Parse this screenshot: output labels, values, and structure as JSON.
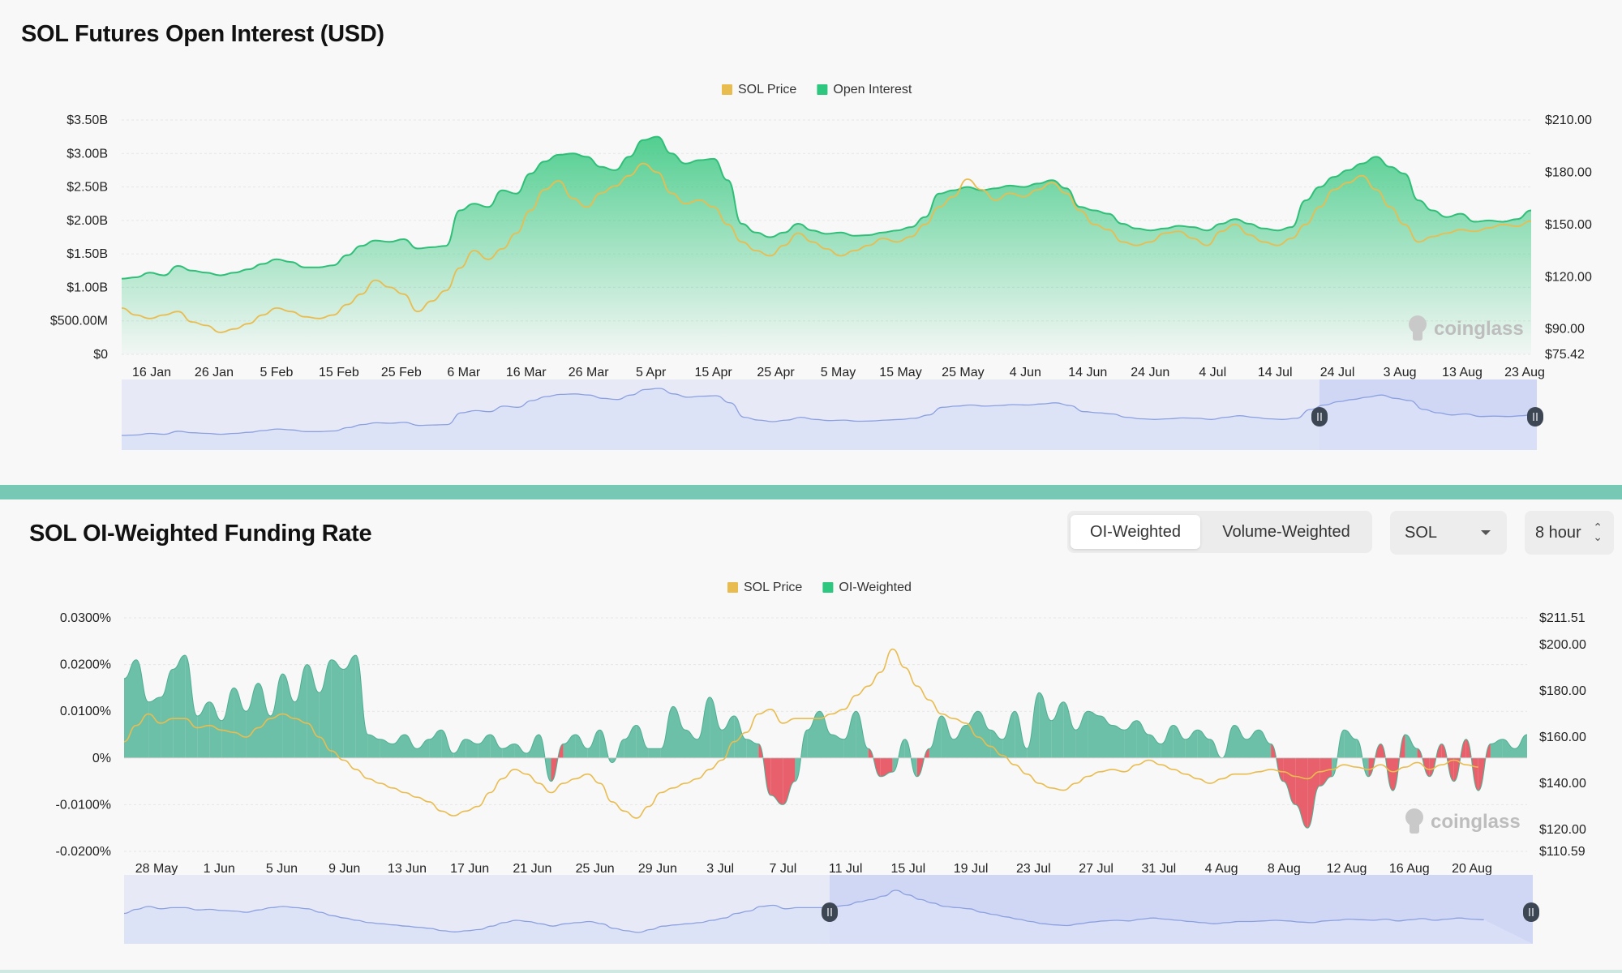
{
  "oi_section": {
    "title": "SOL Futures Open Interest (USD)",
    "legend": [
      {
        "label": "SOL Price",
        "color": "#e9bc4f"
      },
      {
        "label": "Open Interest",
        "color": "#2ec77f"
      }
    ],
    "watermark": "coinglass",
    "chart_data": {
      "type": "area",
      "title": "SOL Futures Open Interest (USD)",
      "x_tick_labels": [
        "16 Jan",
        "26 Jan",
        "5 Feb",
        "15 Feb",
        "25 Feb",
        "6 Mar",
        "16 Mar",
        "26 Mar",
        "5 Apr",
        "15 Apr",
        "25 Apr",
        "5 May",
        "15 May",
        "25 May",
        "4 Jun",
        "14 Jun",
        "24 Jun",
        "4 Jul",
        "14 Jul",
        "24 Jul",
        "3 Aug",
        "13 Aug",
        "23 Aug"
      ],
      "y_left_ticks": [
        "$0",
        "$500.00M",
        "$1.00B",
        "$1.50B",
        "$2.00B",
        "$2.50B",
        "$3.00B",
        "$3.50B"
      ],
      "y_right_ticks": [
        "$75.42",
        "$90.00",
        "$120.00",
        "$150.00",
        "$180.00",
        "$210.00"
      ],
      "y_left_range": [
        0,
        3.5
      ],
      "y_right_range": [
        75.42,
        210
      ],
      "series": [
        {
          "name": "Open Interest",
          "axis": "left",
          "unit": "B USD",
          "values": [
            1.13,
            1.15,
            1.22,
            1.18,
            1.32,
            1.25,
            1.22,
            1.18,
            1.22,
            1.27,
            1.35,
            1.42,
            1.38,
            1.3,
            1.3,
            1.33,
            1.48,
            1.62,
            1.7,
            1.68,
            1.72,
            1.58,
            1.6,
            1.62,
            2.15,
            2.25,
            2.2,
            2.45,
            2.4,
            2.7,
            2.88,
            2.98,
            3.0,
            2.95,
            2.8,
            2.75,
            2.95,
            3.2,
            3.25,
            3.0,
            2.85,
            2.9,
            2.92,
            2.6,
            1.95,
            1.82,
            1.75,
            1.82,
            1.95,
            1.85,
            1.8,
            1.82,
            1.77,
            1.78,
            1.82,
            1.85,
            1.9,
            2.05,
            2.4,
            2.45,
            2.5,
            2.45,
            2.48,
            2.52,
            2.5,
            2.55,
            2.6,
            2.48,
            2.2,
            2.15,
            2.1,
            1.95,
            1.88,
            1.85,
            1.88,
            1.92,
            1.9,
            1.85,
            1.95,
            2.02,
            1.95,
            1.88,
            1.85,
            1.9,
            2.3,
            2.5,
            2.65,
            2.75,
            2.85,
            2.95,
            2.8,
            2.7,
            2.3,
            2.15,
            2.05,
            2.1,
            1.98,
            2.0,
            1.98,
            2.02,
            2.15
          ]
        },
        {
          "name": "SOL Price",
          "axis": "right",
          "unit": "USD",
          "values": [
            102,
            98,
            96,
            98,
            100,
            94,
            92,
            88,
            90,
            93,
            98,
            102,
            100,
            97,
            96,
            98,
            104,
            110,
            118,
            114,
            110,
            100,
            106,
            112,
            125,
            135,
            130,
            136,
            145,
            158,
            170,
            175,
            165,
            160,
            168,
            172,
            178,
            185,
            180,
            168,
            162,
            164,
            160,
            150,
            140,
            135,
            132,
            138,
            145,
            140,
            136,
            132,
            135,
            138,
            142,
            140,
            143,
            150,
            160,
            166,
            176,
            170,
            164,
            168,
            166,
            170,
            174,
            168,
            158,
            150,
            147,
            140,
            138,
            140,
            145,
            146,
            142,
            138,
            146,
            150,
            144,
            140,
            138,
            142,
            150,
            160,
            170,
            174,
            178,
            170,
            160,
            150,
            140,
            143,
            145,
            147,
            146,
            148,
            150,
            149,
            152
          ]
        }
      ]
    },
    "navigator": {
      "has_range_selector": true
    }
  },
  "funding_section": {
    "title": "SOL OI-Weighted Funding Rate",
    "tabs": [
      {
        "label": "OI-Weighted",
        "active": true
      },
      {
        "label": "Volume-Weighted",
        "active": false
      }
    ],
    "symbol_select": {
      "value": "SOL"
    },
    "interval_select": {
      "value": "8 hour"
    },
    "legend": [
      {
        "label": "SOL Price",
        "color": "#e9bc4f"
      },
      {
        "label": "OI-Weighted",
        "color": "#2ec77f"
      }
    ],
    "watermark": "coinglass",
    "chart_data": {
      "type": "area",
      "title": "SOL OI-Weighted Funding Rate",
      "x_tick_labels": [
        "28 May",
        "1 Jun",
        "5 Jun",
        "9 Jun",
        "13 Jun",
        "17 Jun",
        "21 Jun",
        "25 Jun",
        "29 Jun",
        "3 Jul",
        "7 Jul",
        "11 Jul",
        "15 Jul",
        "19 Jul",
        "23 Jul",
        "27 Jul",
        "31 Jul",
        "4 Aug",
        "8 Aug",
        "12 Aug",
        "16 Aug",
        "20 Aug"
      ],
      "y_left_ticks": [
        "-0.0200%",
        "-0.0100%",
        "0%",
        "0.0100%",
        "0.0200%",
        "0.0300%"
      ],
      "y_right_ticks": [
        "$110.59",
        "$120.00",
        "$140.00",
        "$160.00",
        "$180.00",
        "$200.00",
        "$211.51"
      ],
      "y_left_range": [
        -0.02,
        0.03
      ],
      "y_right_range": [
        110.59,
        211.51
      ],
      "positive_color": "#6cc0a7",
      "negative_color": "#e8606b",
      "series": [
        {
          "name": "OI-Weighted",
          "axis": "left",
          "unit": "%",
          "values": [
            0.017,
            0.021,
            0.012,
            0.013,
            0.019,
            0.022,
            0.009,
            0.012,
            0.008,
            0.015,
            0.01,
            0.016,
            0.009,
            0.018,
            0.012,
            0.02,
            0.014,
            0.021,
            0.019,
            0.022,
            0.005,
            0.004,
            0.003,
            0.005,
            0.002,
            0.004,
            0.006,
            0.001,
            0.004,
            0.003,
            0.005,
            0.002,
            0.003,
            0.001,
            0.005,
            -0.005,
            0.003,
            0.005,
            0.002,
            0.006,
            -0.001,
            0.004,
            0.007,
            0.002,
            0.002,
            0.011,
            0.006,
            0.004,
            0.013,
            0.006,
            0.009,
            0.004,
            0.003,
            -0.008,
            -0.01,
            -0.005,
            0.006,
            0.01,
            0.005,
            0.004,
            0.01,
            0.002,
            -0.004,
            -0.003,
            0.004,
            -0.004,
            0.002,
            0.009,
            0.004,
            0.007,
            0.01,
            0.006,
            0.004,
            0.01,
            0.002,
            0.014,
            0.008,
            0.012,
            0.006,
            0.01,
            0.009,
            0.007,
            0.006,
            0.008,
            0.005,
            0.003,
            0.007,
            0.004,
            0.006,
            0.004,
            0.0,
            0.007,
            0.004,
            0.006,
            0.003,
            -0.005,
            -0.01,
            -0.015,
            -0.006,
            -0.004,
            0.006,
            0.004,
            -0.004,
            0.003,
            -0.007,
            0.005,
            0.002,
            -0.004,
            0.003,
            -0.005,
            0.004,
            -0.007,
            0.003,
            0.004,
            0.002,
            0.005
          ]
        },
        {
          "name": "SOL Price",
          "axis": "right",
          "unit": "USD",
          "values": [
            158,
            165,
            170,
            166,
            168,
            168,
            164,
            165,
            163,
            162,
            160,
            164,
            168,
            170,
            168,
            166,
            160,
            154,
            150,
            146,
            142,
            140,
            138,
            136,
            134,
            132,
            128,
            126,
            128,
            130,
            136,
            142,
            146,
            144,
            140,
            136,
            140,
            142,
            144,
            140,
            132,
            128,
            125,
            130,
            136,
            138,
            140,
            142,
            146,
            150,
            158,
            162,
            170,
            172,
            166,
            168,
            168,
            168,
            170,
            172,
            178,
            182,
            188,
            198,
            190,
            182,
            176,
            170,
            168,
            166,
            160,
            156,
            152,
            148,
            144,
            140,
            138,
            137,
            140,
            143,
            145,
            146,
            145,
            148,
            150,
            148,
            146,
            144,
            142,
            140,
            142,
            144,
            144,
            145,
            146,
            145,
            143,
            142,
            145,
            146,
            148,
            147,
            146,
            148,
            145,
            147,
            149,
            146,
            148,
            150,
            148,
            147
          ]
        }
      ]
    },
    "navigator": {
      "has_range_selector": true
    }
  }
}
